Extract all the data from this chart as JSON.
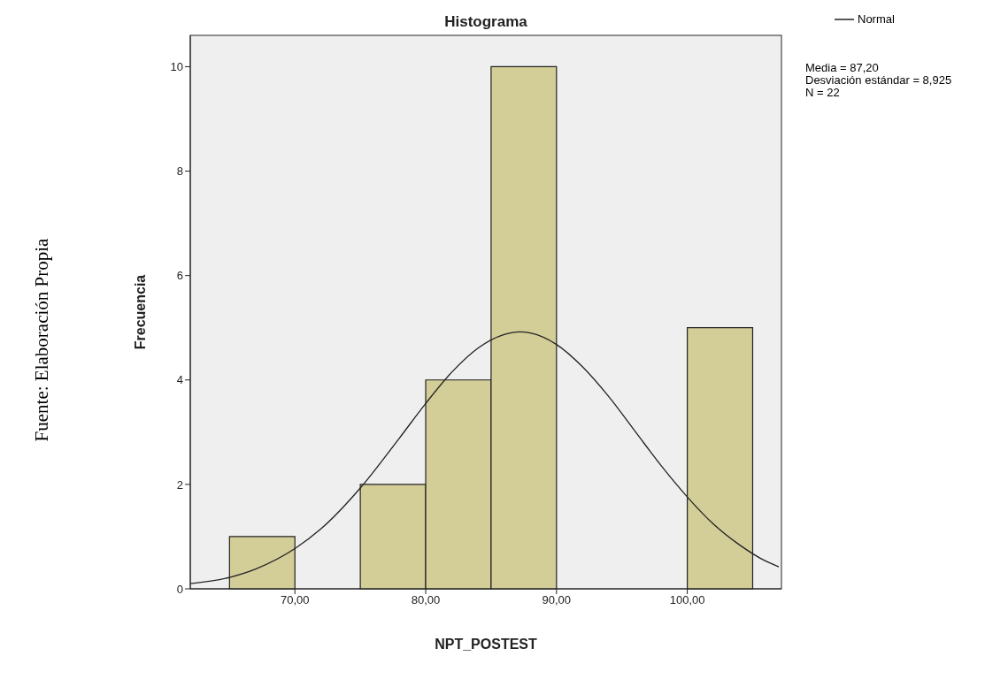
{
  "chart_data": {
    "type": "histogram",
    "title": "Histograma",
    "xlabel": "NPT_POSTEST",
    "ylabel": "Frecuencia",
    "bins": [
      65,
      70,
      75,
      80,
      85,
      90,
      95,
      100,
      105
    ],
    "values": [
      1,
      0,
      2,
      4,
      10,
      0,
      0,
      5
    ],
    "color": "#d3cd98",
    "series": [
      {
        "name": "Normal",
        "type": "line",
        "color": "#222222",
        "x": [
          62,
          65,
          67,
          70,
          72,
          75,
          78,
          80,
          82,
          84,
          86,
          87.2,
          88,
          90,
          92,
          94,
          96,
          98,
          100,
          102,
          104,
          106,
          107
        ],
        "values": [
          0.1,
          0.22,
          0.38,
          0.77,
          1.15,
          1.93,
          2.89,
          3.55,
          4.15,
          4.61,
          4.87,
          4.92,
          4.9,
          4.68,
          4.25,
          3.68,
          3.02,
          2.36,
          1.76,
          1.24,
          0.84,
          0.53,
          0.42
        ]
      }
    ],
    "xlim": [
      62,
      107.2
    ],
    "xticks": [
      {
        "value": 70,
        "label": "70,00"
      },
      {
        "value": 80,
        "label": "80,00"
      },
      {
        "value": 90,
        "label": "90,00"
      },
      {
        "value": 100,
        "label": "100,00"
      }
    ],
    "ylim": [
      0,
      10.6
    ],
    "yticks": [
      0,
      2,
      4,
      6,
      8,
      10
    ],
    "legend": "top right",
    "marker": "none",
    "annotations": [
      "Fuente: Elaboración Propia",
      "Media = 87,20",
      "Desviación estándar = 8,925",
      "N = 22"
    ]
  }
}
